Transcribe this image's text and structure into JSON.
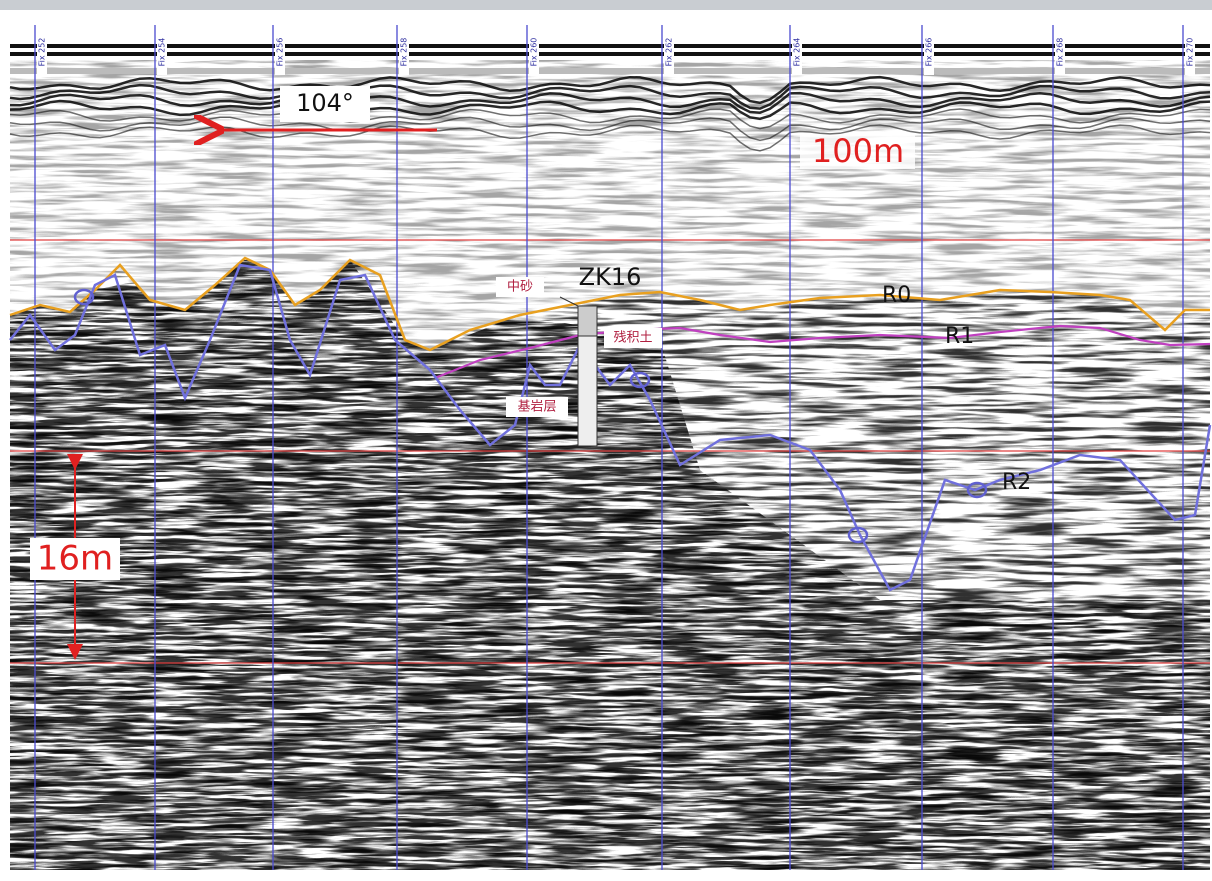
{
  "fix_labels": [
    "Fix 252",
    "Fix 254",
    "Fix 256",
    "Fix 258",
    "Fix 260",
    "Fix 262",
    "Fix 264",
    "Fix 266",
    "Fix 268",
    "Fix 270"
  ],
  "direction": "104°",
  "horizontal_scale": "100m",
  "vertical_scale": "16m",
  "borehole": {
    "name": "ZK16",
    "layers": [
      "中砂",
      "残积土",
      "基岩层"
    ]
  },
  "horizons": [
    "R0",
    "R1",
    "R2"
  ]
}
